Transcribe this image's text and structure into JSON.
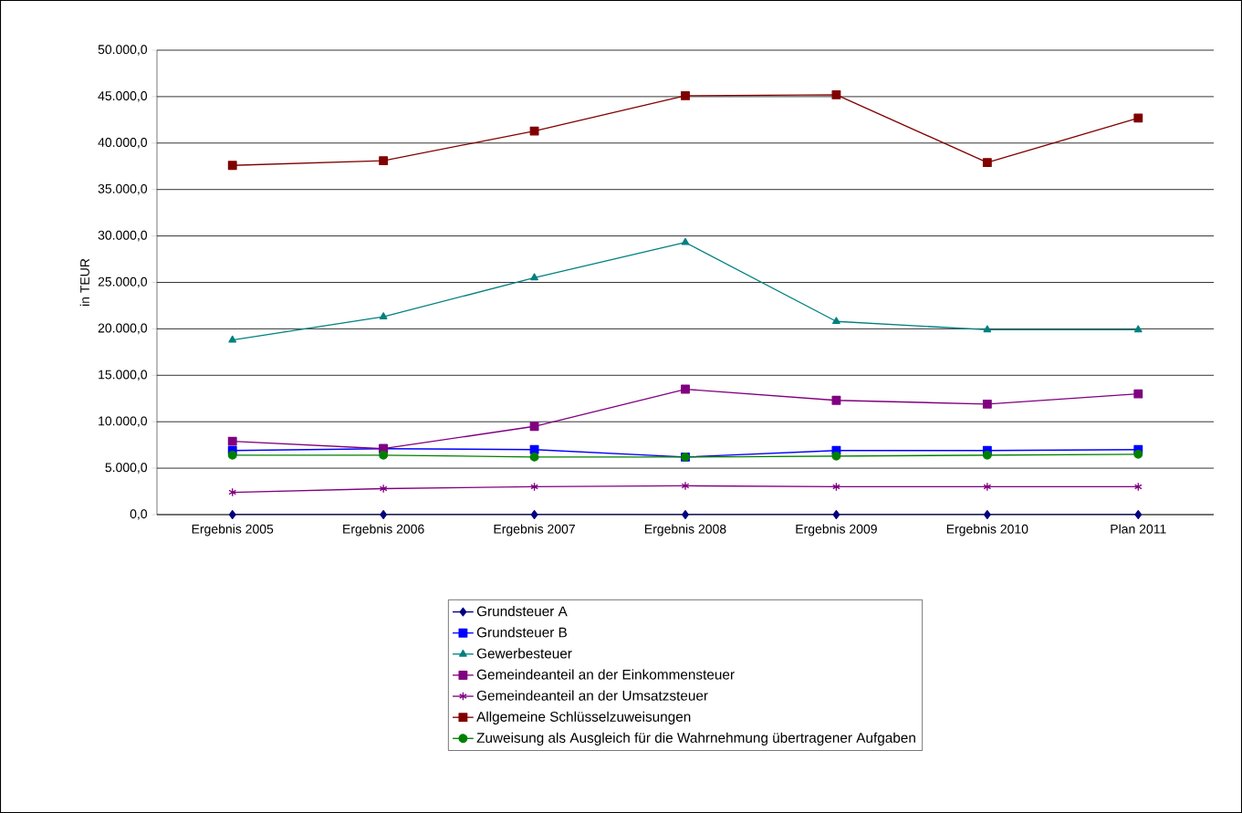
{
  "chart_data": {
    "type": "line",
    "ylabel": "in TEUR",
    "categories": [
      "Ergebnis 2005",
      "Ergebnis 2006",
      "Ergebnis 2007",
      "Ergebnis 2008",
      "Ergebnis 2009",
      "Ergebnis 2010",
      "Plan 2011"
    ],
    "ylim": [
      0,
      50000
    ],
    "yticks": [
      {
        "value": 0,
        "label": "0,0"
      },
      {
        "value": 5000,
        "label": "5.000,0"
      },
      {
        "value": 10000,
        "label": "10.000,0"
      },
      {
        "value": 15000,
        "label": "15.000,0"
      },
      {
        "value": 20000,
        "label": "20.000,0"
      },
      {
        "value": 25000,
        "label": "25.000,0"
      },
      {
        "value": 30000,
        "label": "30.000,0"
      },
      {
        "value": 35000,
        "label": "35.000,0"
      },
      {
        "value": 40000,
        "label": "40.000,0"
      },
      {
        "value": 45000,
        "label": "45.000,0"
      },
      {
        "value": 50000,
        "label": "50.000,0"
      }
    ],
    "grid": "y",
    "legend": "bottom",
    "series": [
      {
        "name": "Grundsteuer A",
        "color": "#000080",
        "marker": "diamond",
        "values": [
          0,
          0,
          0,
          0,
          0,
          0,
          0
        ]
      },
      {
        "name": "Grundsteuer B",
        "color": "#0000ff",
        "marker": "square",
        "values": [
          6900,
          7100,
          7000,
          6200,
          6900,
          6900,
          7000
        ]
      },
      {
        "name": "Gewerbesteuer",
        "color": "#008080",
        "marker": "triangle",
        "values": [
          18800,
          21300,
          25500,
          29300,
          20800,
          19900,
          19900
        ]
      },
      {
        "name": "Gemeindeanteil an der Einkommensteuer",
        "color": "#800080",
        "marker": "square",
        "values": [
          7900,
          7100,
          9500,
          13500,
          12300,
          11900,
          13000
        ]
      },
      {
        "name": "Gemeindeanteil an der Umsatzsteuer",
        "color": "#800080",
        "marker": "cross",
        "values": [
          2400,
          2800,
          3000,
          3100,
          3000,
          3000,
          3000
        ]
      },
      {
        "name": "Allgemeine Schlüsselzuweisungen",
        "color": "#800000",
        "marker": "square",
        "values": [
          37600,
          38100,
          41300,
          45100,
          45200,
          37900,
          42700
        ]
      },
      {
        "name": "Zuweisung als Ausgleich für die Wahrnehmung übertragener Aufgaben",
        "color": "#008000",
        "marker": "circle",
        "values": [
          6400,
          6400,
          6200,
          6200,
          6300,
          6400,
          6500
        ]
      }
    ]
  }
}
